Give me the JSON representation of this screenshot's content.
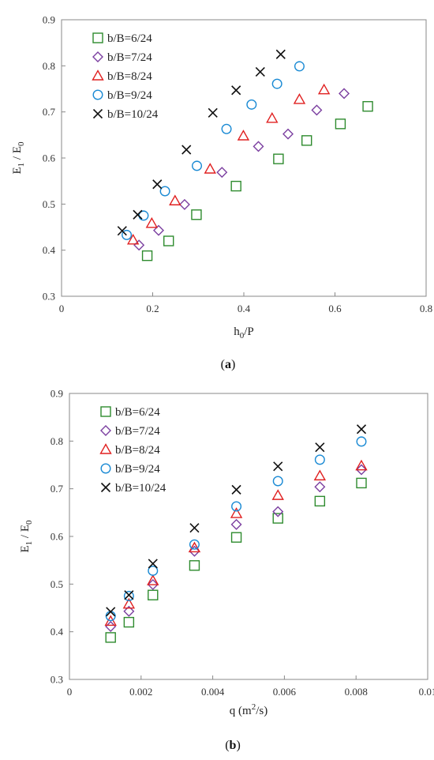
{
  "chart_data": [
    {
      "type": "scatter",
      "caption": "a",
      "xlabel": "h",
      "xlabel_sub": "0",
      "xlabel_tail": "/P",
      "ylabel": "E",
      "ylabel_sub1": "1",
      "ylabel_mid": " / E",
      "ylabel_sub2": "0",
      "xlim": [
        0,
        0.8
      ],
      "ylim": [
        0.3,
        0.9
      ],
      "xticks": [
        "0",
        "0.2",
        "0.4",
        "0.6",
        "0.8"
      ],
      "yticks": [
        "0.3",
        "0.4",
        "0.5",
        "0.6",
        "0.7",
        "0.8",
        "0.9"
      ],
      "legend_position": "top-left",
      "series": [
        {
          "name": "b/B=6/24",
          "marker": "square",
          "color": "#2e8b2e",
          "x": [
            0.188,
            0.235,
            0.296,
            0.383,
            0.476,
            0.538,
            0.612,
            0.672
          ],
          "y": [
            0.388,
            0.42,
            0.477,
            0.539,
            0.598,
            0.638,
            0.674,
            0.712
          ]
        },
        {
          "name": "b/B=7/24",
          "marker": "diamond",
          "color": "#7b3fa0",
          "x": [
            0.17,
            0.213,
            0.27,
            0.352,
            0.432,
            0.497,
            0.56,
            0.62
          ],
          "y": [
            0.411,
            0.443,
            0.499,
            0.569,
            0.625,
            0.652,
            0.704,
            0.74
          ]
        },
        {
          "name": "b/B=8/24",
          "marker": "triangle",
          "color": "#e02020",
          "x": [
            0.157,
            0.198,
            0.249,
            0.326,
            0.399,
            0.462,
            0.522,
            0.576
          ],
          "y": [
            0.422,
            0.458,
            0.507,
            0.576,
            0.648,
            0.686,
            0.727,
            0.748
          ]
        },
        {
          "name": "b/B=9/24",
          "marker": "circle",
          "color": "#1a8ad4",
          "x": [
            0.143,
            0.18,
            0.227,
            0.297,
            0.362,
            0.417,
            0.473,
            0.522
          ],
          "y": [
            0.433,
            0.475,
            0.528,
            0.583,
            0.663,
            0.716,
            0.761,
            0.799
          ]
        },
        {
          "name": "b/B=10/24",
          "marker": "x",
          "color": "#111111",
          "x": [
            0.133,
            0.167,
            0.21,
            0.274,
            0.332,
            0.383,
            0.436,
            0.481
          ],
          "y": [
            0.442,
            0.477,
            0.543,
            0.618,
            0.698,
            0.747,
            0.787,
            0.825
          ]
        }
      ]
    },
    {
      "type": "scatter",
      "caption": "b",
      "xlabel": "q (m",
      "xlabel_sup": "2",
      "xlabel_tail": "/s)",
      "ylabel": "E",
      "ylabel_sub1": "1",
      "ylabel_mid": " / E",
      "ylabel_sub2": "0",
      "xlim": [
        0,
        0.01
      ],
      "ylim": [
        0.3,
        0.9
      ],
      "xticks": [
        "0",
        "0.002",
        "0.004",
        "0.006",
        "0.008",
        "0.01"
      ],
      "yticks": [
        "0.3",
        "0.4",
        "0.5",
        "0.6",
        "0.7",
        "0.8",
        "0.9"
      ],
      "legend_position": "top-left",
      "series": [
        {
          "name": "b/B=6/24",
          "marker": "square",
          "color": "#2e8b2e",
          "x": [
            0.00115,
            0.00166,
            0.00233,
            0.00349,
            0.00466,
            0.00582,
            0.00699,
            0.00815
          ],
          "y": [
            0.388,
            0.42,
            0.477,
            0.539,
            0.598,
            0.638,
            0.674,
            0.712
          ]
        },
        {
          "name": "b/B=7/24",
          "marker": "diamond",
          "color": "#7b3fa0",
          "x": [
            0.00115,
            0.00166,
            0.00233,
            0.00349,
            0.00466,
            0.00582,
            0.00699,
            0.00815
          ],
          "y": [
            0.411,
            0.443,
            0.499,
            0.569,
            0.625,
            0.652,
            0.704,
            0.74
          ]
        },
        {
          "name": "b/B=8/24",
          "marker": "triangle",
          "color": "#e02020",
          "x": [
            0.00115,
            0.00166,
            0.00233,
            0.00349,
            0.00466,
            0.00582,
            0.00699,
            0.00815
          ],
          "y": [
            0.422,
            0.458,
            0.507,
            0.576,
            0.648,
            0.686,
            0.727,
            0.748
          ]
        },
        {
          "name": "b/B=9/24",
          "marker": "circle",
          "color": "#1a8ad4",
          "x": [
            0.00115,
            0.00166,
            0.00233,
            0.00349,
            0.00466,
            0.00582,
            0.00699,
            0.00815
          ],
          "y": [
            0.433,
            0.475,
            0.528,
            0.583,
            0.663,
            0.716,
            0.761,
            0.799
          ]
        },
        {
          "name": "b/B=10/24",
          "marker": "x",
          "color": "#111111",
          "x": [
            0.00115,
            0.00166,
            0.00233,
            0.00349,
            0.00466,
            0.00582,
            0.00699,
            0.00815
          ],
          "y": [
            0.442,
            0.477,
            0.543,
            0.618,
            0.698,
            0.747,
            0.787,
            0.825
          ]
        }
      ]
    }
  ]
}
